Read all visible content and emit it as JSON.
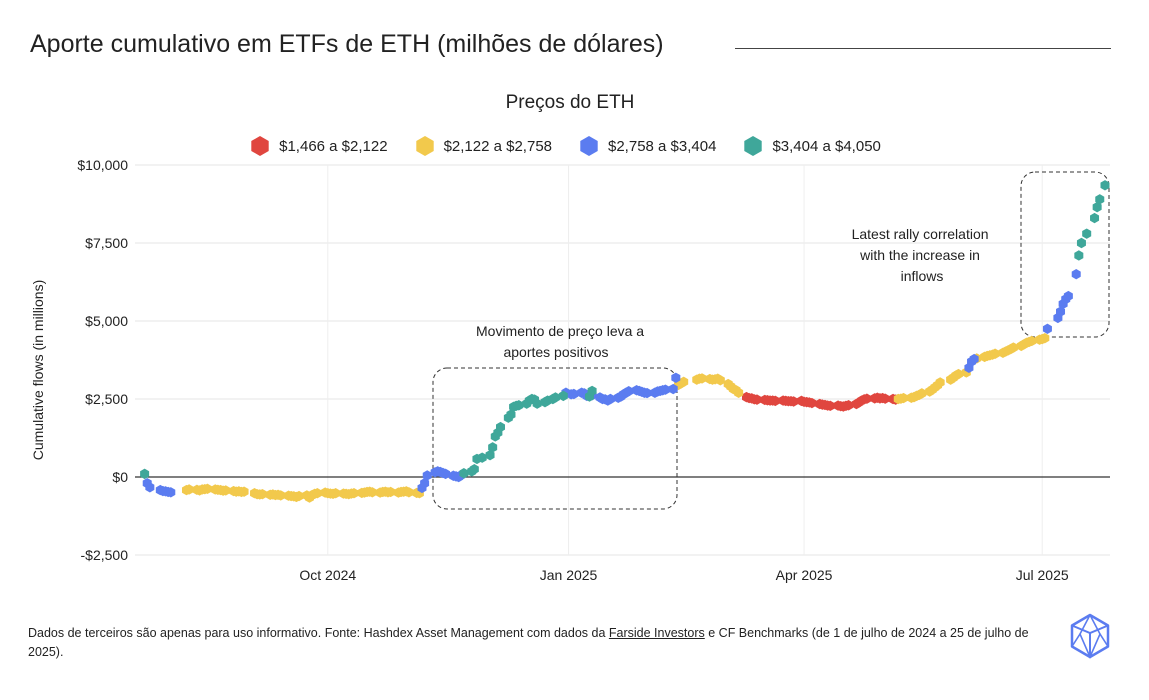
{
  "title": "Aporte cumulativo em ETFs de ETH (milhões de dólares)",
  "legend": {
    "title": "Preços do ETH",
    "items": [
      {
        "label": "$1,466 a $2,122",
        "color": "#e0463f"
      },
      {
        "label": "$2,122 a $2,758",
        "color": "#f2c94c"
      },
      {
        "label": "$2,758 a $3,404",
        "color": "#5b7cf0"
      },
      {
        "label": "$3,404 a $4,050",
        "color": "#3fa79a"
      }
    ]
  },
  "annotations": [
    {
      "text": "Movimento de preço leva a aportes positivos"
    },
    {
      "text": "Latest rally correlation with the increase in inflows"
    }
  ],
  "footer": {
    "text_before": "Dados de terceiros são apenas para uso informativo. Fonte: Hashdex Asset Management com dados da ",
    "link": "Farside Investors",
    "text_after": " e CF Benchmarks (de 1 de julho de 2024 a 25 de julho de 2025)."
  },
  "logo_icon": "hashdex-logo-icon",
  "chart_data": {
    "type": "scatter",
    "title": "Aporte cumulativo em ETFs de ETH (milhões de dólares)",
    "ylabel": "Cumulative flows (in millions)",
    "xlabel": "",
    "ylim": [
      -2500,
      10000
    ],
    "y_ticks": [
      -2500,
      0,
      2500,
      5000,
      7500,
      10000
    ],
    "y_tick_labels": [
      "-$2,500",
      "$0",
      "$2,500",
      "$5,000",
      "$7,500",
      "$10,000"
    ],
    "xlim": [
      "2024-07-22",
      "2025-07-25"
    ],
    "x_ticks": [
      "2024-10-01",
      "2025-01-01",
      "2025-04-01",
      "2025-07-01"
    ],
    "x_tick_labels": [
      "Oct 2024",
      "Jan 2025",
      "Apr 2025",
      "Jul 2025"
    ],
    "grid": true,
    "legend_position": "top-center",
    "series": [
      {
        "name": "$1,466 a $2,122",
        "color": "#e0463f",
        "points": [
          [
            "2025-03-10",
            2560
          ],
          [
            "2025-03-11",
            2530
          ],
          [
            "2025-03-12",
            2520
          ],
          [
            "2025-03-13",
            2490
          ],
          [
            "2025-03-14",
            2480
          ],
          [
            "2025-03-17",
            2470
          ],
          [
            "2025-03-18",
            2460
          ],
          [
            "2025-03-19",
            2450
          ],
          [
            "2025-03-20",
            2450
          ],
          [
            "2025-03-21",
            2440
          ],
          [
            "2025-03-24",
            2450
          ],
          [
            "2025-03-25",
            2440
          ],
          [
            "2025-03-26",
            2430
          ],
          [
            "2025-03-27",
            2430
          ],
          [
            "2025-03-28",
            2420
          ],
          [
            "2025-03-31",
            2440
          ],
          [
            "2025-04-01",
            2410
          ],
          [
            "2025-04-02",
            2400
          ],
          [
            "2025-04-03",
            2390
          ],
          [
            "2025-04-04",
            2370
          ],
          [
            "2025-04-07",
            2340
          ],
          [
            "2025-04-08",
            2320
          ],
          [
            "2025-04-09",
            2310
          ],
          [
            "2025-04-10",
            2290
          ],
          [
            "2025-04-11",
            2280
          ],
          [
            "2025-04-14",
            2290
          ],
          [
            "2025-04-15",
            2270
          ],
          [
            "2025-04-16",
            2260
          ],
          [
            "2025-04-17",
            2280
          ],
          [
            "2025-04-18",
            2300
          ],
          [
            "2025-04-21",
            2340
          ],
          [
            "2025-04-22",
            2390
          ],
          [
            "2025-04-23",
            2450
          ],
          [
            "2025-04-24",
            2490
          ],
          [
            "2025-04-25",
            2510
          ],
          [
            "2025-04-28",
            2520
          ],
          [
            "2025-04-29",
            2540
          ],
          [
            "2025-04-30",
            2520
          ],
          [
            "2025-05-01",
            2530
          ],
          [
            "2025-05-02",
            2510
          ],
          [
            "2025-05-05",
            2500
          ],
          [
            "2025-05-06",
            2480
          ]
        ]
      },
      {
        "name": "$2,122 a $2,758",
        "color": "#f2c94c",
        "points": [
          [
            "2024-08-08",
            -420
          ],
          [
            "2024-08-09",
            -400
          ],
          [
            "2024-08-12",
            -410
          ],
          [
            "2024-08-13",
            -430
          ],
          [
            "2024-08-14",
            -400
          ],
          [
            "2024-08-15",
            -390
          ],
          [
            "2024-08-16",
            -380
          ],
          [
            "2024-08-19",
            -400
          ],
          [
            "2024-08-20",
            -410
          ],
          [
            "2024-08-21",
            -420
          ],
          [
            "2024-08-22",
            -440
          ],
          [
            "2024-08-23",
            -430
          ],
          [
            "2024-08-26",
            -450
          ],
          [
            "2024-08-27",
            -470
          ],
          [
            "2024-08-28",
            -460
          ],
          [
            "2024-08-29",
            -480
          ],
          [
            "2024-08-30",
            -470
          ],
          [
            "2024-09-03",
            -520
          ],
          [
            "2024-09-04",
            -550
          ],
          [
            "2024-09-05",
            -560
          ],
          [
            "2024-09-06",
            -550
          ],
          [
            "2024-09-09",
            -570
          ],
          [
            "2024-09-10",
            -560
          ],
          [
            "2024-09-11",
            -580
          ],
          [
            "2024-09-12",
            -570
          ],
          [
            "2024-09-13",
            -590
          ],
          [
            "2024-09-16",
            -600
          ],
          [
            "2024-09-17",
            -610
          ],
          [
            "2024-09-18",
            -620
          ],
          [
            "2024-09-19",
            -640
          ],
          [
            "2024-09-20",
            -610
          ],
          [
            "2024-09-23",
            -590
          ],
          [
            "2024-09-24",
            -660
          ],
          [
            "2024-09-25",
            -580
          ],
          [
            "2024-09-26",
            -540
          ],
          [
            "2024-09-27",
            -520
          ],
          [
            "2024-09-30",
            -500
          ],
          [
            "2024-10-01",
            -520
          ],
          [
            "2024-10-02",
            -530
          ],
          [
            "2024-10-03",
            -540
          ],
          [
            "2024-10-04",
            -520
          ],
          [
            "2024-10-07",
            -530
          ],
          [
            "2024-10-08",
            -540
          ],
          [
            "2024-10-09",
            -550
          ],
          [
            "2024-10-10",
            -530
          ],
          [
            "2024-10-11",
            -520
          ],
          [
            "2024-10-14",
            -510
          ],
          [
            "2024-10-15",
            -500
          ],
          [
            "2024-10-16",
            -480
          ],
          [
            "2024-10-17",
            -470
          ],
          [
            "2024-10-18",
            -490
          ],
          [
            "2024-10-21",
            -500
          ],
          [
            "2024-10-22",
            -480
          ],
          [
            "2024-10-23",
            -470
          ],
          [
            "2024-10-24",
            -490
          ],
          [
            "2024-10-25",
            -480
          ],
          [
            "2024-10-28",
            -500
          ],
          [
            "2024-10-29",
            -480
          ],
          [
            "2024-10-30",
            -470
          ],
          [
            "2024-10-31",
            -460
          ],
          [
            "2024-11-01",
            -490
          ],
          [
            "2024-11-04",
            -510
          ],
          [
            "2024-11-05",
            -520
          ],
          [
            "2025-02-12",
            2950
          ],
          [
            "2025-02-13",
            3000
          ],
          [
            "2025-02-14",
            3050
          ],
          [
            "2025-02-19",
            3120
          ],
          [
            "2025-02-20",
            3150
          ],
          [
            "2025-02-21",
            3160
          ],
          [
            "2025-02-24",
            3140
          ],
          [
            "2025-02-25",
            3120
          ],
          [
            "2025-02-26",
            3130
          ],
          [
            "2025-02-27",
            3150
          ],
          [
            "2025-02-28",
            3100
          ],
          [
            "2025-03-03",
            2980
          ],
          [
            "2025-03-04",
            2900
          ],
          [
            "2025-03-05",
            2820
          ],
          [
            "2025-03-06",
            2780
          ],
          [
            "2025-03-07",
            2700
          ],
          [
            "2025-05-07",
            2500
          ],
          [
            "2025-05-08",
            2510
          ],
          [
            "2025-05-09",
            2530
          ],
          [
            "2025-05-12",
            2540
          ],
          [
            "2025-05-13",
            2560
          ],
          [
            "2025-05-14",
            2600
          ],
          [
            "2025-05-15",
            2630
          ],
          [
            "2025-05-16",
            2680
          ],
          [
            "2025-05-19",
            2740
          ],
          [
            "2025-05-20",
            2800
          ],
          [
            "2025-05-21",
            2870
          ],
          [
            "2025-05-22",
            2940
          ],
          [
            "2025-05-23",
            3030
          ],
          [
            "2025-05-27",
            3120
          ],
          [
            "2025-05-28",
            3180
          ],
          [
            "2025-05-29",
            3250
          ],
          [
            "2025-05-30",
            3300
          ],
          [
            "2025-06-02",
            3350
          ],
          [
            "2025-06-06",
            3800
          ],
          [
            "2025-06-09",
            3850
          ],
          [
            "2025-06-10",
            3880
          ],
          [
            "2025-06-11",
            3900
          ],
          [
            "2025-06-12",
            3920
          ],
          [
            "2025-06-13",
            3950
          ],
          [
            "2025-06-16",
            3980
          ],
          [
            "2025-06-17",
            4020
          ],
          [
            "2025-06-18",
            4060
          ],
          [
            "2025-06-19",
            4100
          ],
          [
            "2025-06-20",
            4150
          ],
          [
            "2025-06-23",
            4200
          ],
          [
            "2025-06-24",
            4250
          ],
          [
            "2025-06-25",
            4300
          ],
          [
            "2025-06-26",
            4330
          ],
          [
            "2025-06-27",
            4360
          ],
          [
            "2025-06-30",
            4400
          ],
          [
            "2025-07-01",
            4420
          ],
          [
            "2025-07-02",
            4450
          ]
        ]
      },
      {
        "name": "$2,758 a $3,404",
        "color": "#5b7cf0",
        "points": [
          [
            "2024-07-24",
            -200
          ],
          [
            "2024-07-25",
            -330
          ],
          [
            "2024-07-29",
            -420
          ],
          [
            "2024-07-30",
            -450
          ],
          [
            "2024-07-31",
            -460
          ],
          [
            "2024-08-01",
            -480
          ],
          [
            "2024-08-02",
            -490
          ],
          [
            "2024-11-06",
            -350
          ],
          [
            "2024-11-07",
            -200
          ],
          [
            "2024-11-08",
            50
          ],
          [
            "2024-11-11",
            150
          ],
          [
            "2024-11-12",
            180
          ],
          [
            "2024-11-13",
            160
          ],
          [
            "2024-11-14",
            130
          ],
          [
            "2024-11-15",
            100
          ],
          [
            "2024-11-18",
            40
          ],
          [
            "2024-11-19",
            20
          ],
          [
            "2024-11-20",
            0
          ],
          [
            "2024-11-21",
            60
          ],
          [
            "2024-12-31",
            2700
          ],
          [
            "2025-01-02",
            2650
          ],
          [
            "2025-01-03",
            2660
          ],
          [
            "2025-01-06",
            2700
          ],
          [
            "2025-01-07",
            2680
          ],
          [
            "2025-01-08",
            2600
          ],
          [
            "2025-01-10",
            2620
          ],
          [
            "2025-01-13",
            2550
          ],
          [
            "2025-01-14",
            2500
          ],
          [
            "2025-01-15",
            2490
          ],
          [
            "2025-01-16",
            2450
          ],
          [
            "2025-01-17",
            2500
          ],
          [
            "2025-01-20",
            2540
          ],
          [
            "2025-01-21",
            2580
          ],
          [
            "2025-01-22",
            2650
          ],
          [
            "2025-01-23",
            2700
          ],
          [
            "2025-01-24",
            2750
          ],
          [
            "2025-01-27",
            2780
          ],
          [
            "2025-01-28",
            2760
          ],
          [
            "2025-01-29",
            2730
          ],
          [
            "2025-01-30",
            2700
          ],
          [
            "2025-01-31",
            2690
          ],
          [
            "2025-02-03",
            2700
          ],
          [
            "2025-02-04",
            2740
          ],
          [
            "2025-02-05",
            2760
          ],
          [
            "2025-02-06",
            2780
          ],
          [
            "2025-02-07",
            2800
          ],
          [
            "2025-02-10",
            2820
          ],
          [
            "2025-02-11",
            3180
          ],
          [
            "2025-06-03",
            3500
          ],
          [
            "2025-06-04",
            3700
          ],
          [
            "2025-06-05",
            3780
          ],
          [
            "2025-07-03",
            4750
          ],
          [
            "2025-07-07",
            5100
          ],
          [
            "2025-07-08",
            5300
          ],
          [
            "2025-07-09",
            5550
          ],
          [
            "2025-07-10",
            5700
          ],
          [
            "2025-07-11",
            5800
          ],
          [
            "2025-07-14",
            6500
          ]
        ]
      },
      {
        "name": "$3,404 a $4,050",
        "color": "#3fa79a",
        "points": [
          [
            "2024-07-23",
            100
          ],
          [
            "2024-11-22",
            120
          ],
          [
            "2024-11-25",
            180
          ],
          [
            "2024-11-26",
            250
          ],
          [
            "2024-11-27",
            580
          ],
          [
            "2024-11-29",
            620
          ],
          [
            "2024-12-02",
            700
          ],
          [
            "2024-12-03",
            950
          ],
          [
            "2024-12-04",
            1300
          ],
          [
            "2024-12-05",
            1420
          ],
          [
            "2024-12-06",
            1600
          ],
          [
            "2024-12-09",
            1900
          ],
          [
            "2024-12-10",
            2000
          ],
          [
            "2024-12-11",
            2250
          ],
          [
            "2024-12-12",
            2280
          ],
          [
            "2024-12-13",
            2300
          ],
          [
            "2024-12-16",
            2350
          ],
          [
            "2024-12-17",
            2450
          ],
          [
            "2024-12-18",
            2500
          ],
          [
            "2024-12-19",
            2480
          ],
          [
            "2024-12-20",
            2350
          ],
          [
            "2024-12-23",
            2400
          ],
          [
            "2024-12-24",
            2450
          ],
          [
            "2024-12-26",
            2500
          ],
          [
            "2024-12-27",
            2550
          ],
          [
            "2024-12-30",
            2600
          ],
          [
            "2025-01-09",
            2580
          ],
          [
            "2025-01-10",
            2760
          ],
          [
            "2025-07-15",
            7100
          ],
          [
            "2025-07-16",
            7500
          ],
          [
            "2025-07-18",
            7800
          ],
          [
            "2025-07-21",
            8300
          ],
          [
            "2025-07-22",
            8650
          ],
          [
            "2025-07-23",
            8900
          ],
          [
            "2025-07-25",
            9350
          ]
        ]
      }
    ]
  }
}
